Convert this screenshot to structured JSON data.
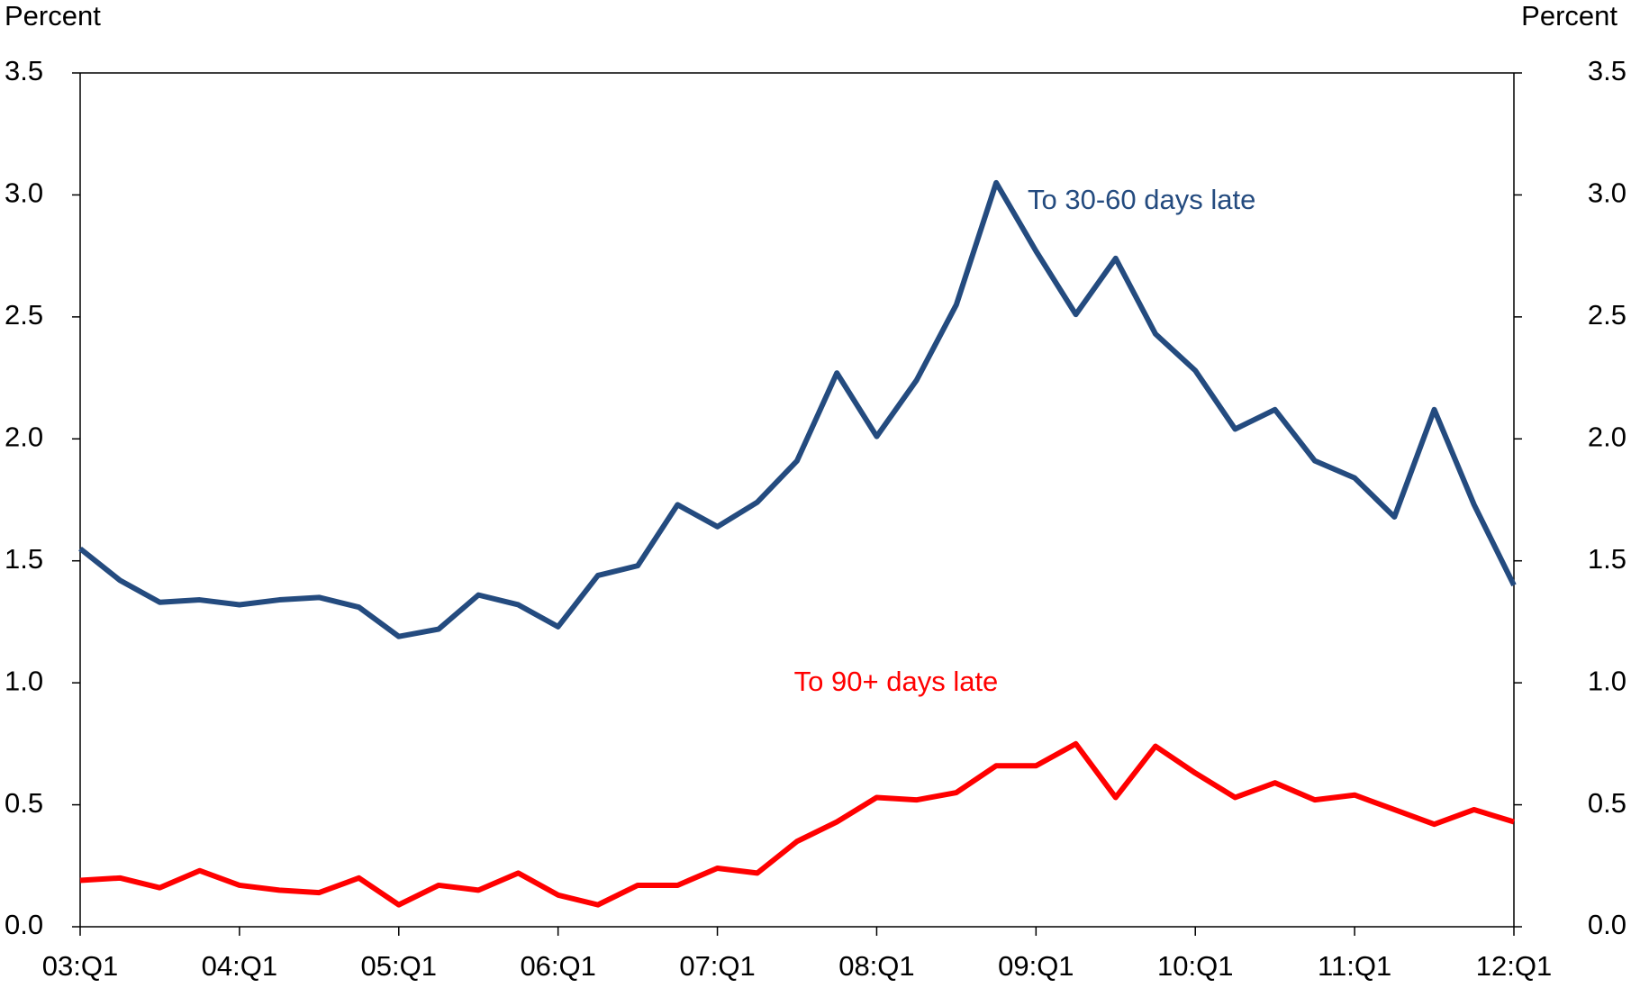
{
  "chart_data": {
    "type": "line",
    "y_label": "Percent",
    "y2_label": "Percent",
    "categories": [
      "03:Q1",
      null,
      null,
      null,
      "04:Q1",
      null,
      null,
      null,
      "05:Q1",
      null,
      null,
      null,
      "06:Q1",
      null,
      null,
      null,
      "07:Q1",
      null,
      null,
      null,
      "08:Q1",
      null,
      null,
      null,
      "09:Q1",
      null,
      null,
      null,
      "10:Q1",
      null,
      null,
      null,
      "11:Q1",
      null,
      null,
      null,
      "12:Q1"
    ],
    "series": [
      {
        "name": "To 30-60 days late",
        "color": "#244b7f",
        "values": [
          1.55,
          1.42,
          1.33,
          1.34,
          1.32,
          1.34,
          1.35,
          1.31,
          1.19,
          1.22,
          1.36,
          1.32,
          1.23,
          1.44,
          1.48,
          1.73,
          1.64,
          1.74,
          1.91,
          2.27,
          2.01,
          2.24,
          2.55,
          3.05,
          2.77,
          2.51,
          2.74,
          2.43,
          2.28,
          2.04,
          2.12,
          1.91,
          1.84,
          1.68,
          2.12,
          1.73,
          1.4
        ]
      },
      {
        "name": "To 90+ days late",
        "color": "#ff0000",
        "values": [
          0.19,
          0.2,
          0.16,
          0.23,
          0.17,
          0.15,
          0.14,
          0.2,
          0.09,
          0.17,
          0.15,
          0.22,
          0.13,
          0.09,
          0.17,
          0.17,
          0.24,
          0.22,
          0.35,
          0.43,
          0.53,
          0.52,
          0.55,
          0.66,
          0.66,
          0.75,
          0.53,
          0.74,
          0.63,
          0.53,
          0.59,
          0.52,
          0.54,
          0.48,
          0.42,
          0.48,
          0.43
        ]
      }
    ],
    "ylim": [
      0,
      3.5
    ],
    "yticks": [
      {
        "value": 0,
        "label": "0.0"
      },
      0.5,
      {
        "value": 1,
        "label": "1.0"
      },
      1.5,
      {
        "value": 2,
        "label": "2.0"
      },
      2.5,
      {
        "value": 3,
        "label": "3.0"
      },
      3.5
    ],
    "y2lim": [
      0,
      3.5
    ],
    "y2ticks": [
      {
        "value": 0,
        "label": "0.0"
      },
      0.5,
      {
        "value": 1,
        "label": "1.0"
      },
      1.5,
      {
        "value": 2,
        "label": "2.0"
      },
      2.5,
      {
        "value": 3,
        "label": "3.0"
      },
      3.5
    ],
    "grid": false
  }
}
